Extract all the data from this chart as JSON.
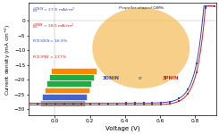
{
  "title": "",
  "xlabel": "Voltage (V)",
  "ylabel": "Current density (mA cm$^{-2}$)",
  "xlim": [
    -0.15,
    0.92
  ],
  "ylim": [
    -32,
    6
  ],
  "yticks": [
    0,
    -5,
    -10,
    -15,
    -20,
    -25,
    -30
  ],
  "xticks": [
    0.0,
    0.2,
    0.4,
    0.6,
    0.8
  ],
  "curve1_color": "#3344bb",
  "curve2_color": "#cc2222",
  "background_color": "#ffffff",
  "circle_facecolor": "#f5c060",
  "circle_alpha": 0.75,
  "propeller_title": "Propeller-shaped CBMs",
  "inset_label_blue": "3ONIN",
  "inset_label_red": "3PNIN",
  "inset_or": "or",
  "Jsc_3ONIN": 27.9,
  "Jsc_3PNIN": 28.5,
  "Voc_3ONIN": 0.843,
  "Voc_3PNIN": 0.853,
  "ann_Jsc1": "J$_{SC}^{3ONIN}$ = 27.9 mA/cm$^{2}$",
  "ann_Jsc2": "J$_{SC}^{3PNIN}$ = 28.5 mA/cm$^{2}$",
  "ann_PCE1": "PCE$_{3ONIN}$ = 16.9%",
  "ann_PCE2": "PCE$_{3PNIN}$ = 17.7%",
  "ann_color1": "#3344bb",
  "ann_color2": "#cc2222",
  "layer_colors": [
    "#aaaaaa",
    "#4466cc",
    "#ff8800",
    "#22aa44",
    "#22aa44",
    "#ff8800"
  ],
  "layer_edge": "#ffffff"
}
